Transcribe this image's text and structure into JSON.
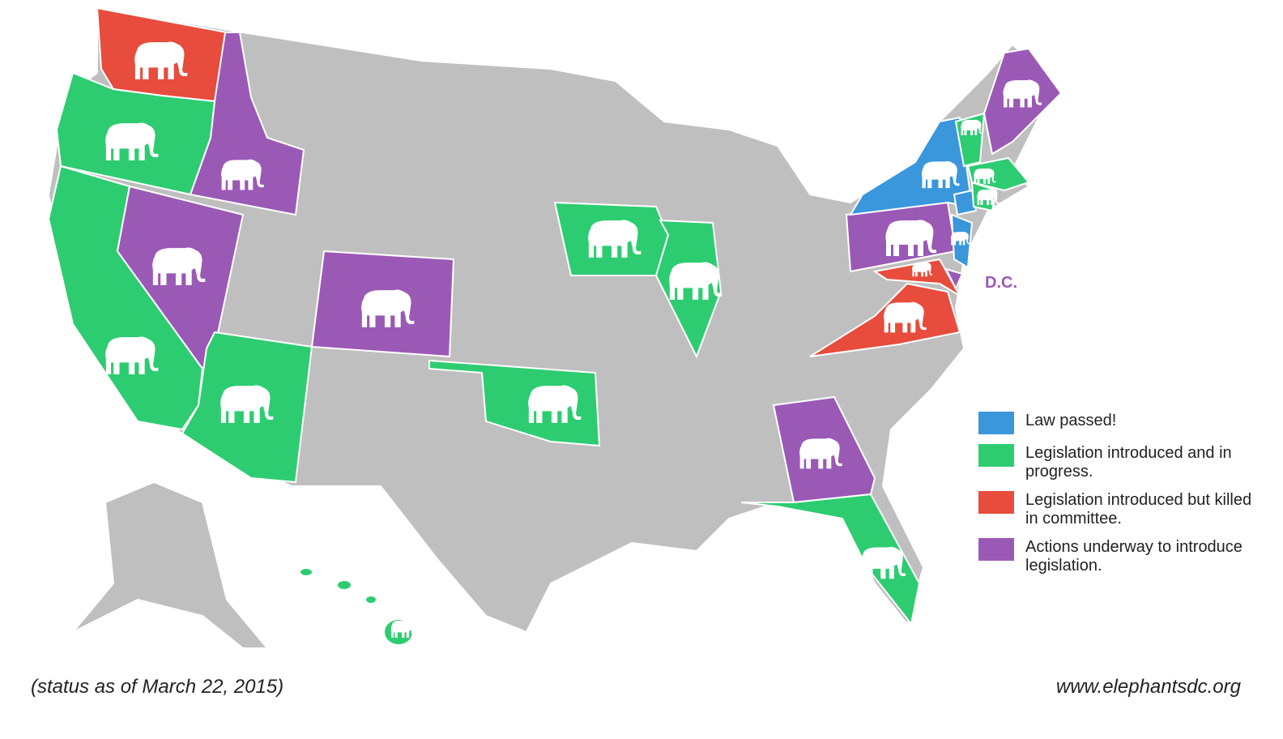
{
  "map": {
    "legend": [
      {
        "label": "Law passed!",
        "color": "#3a97dc"
      },
      {
        "label": "Legislation introduced and in progress.",
        "color": "#2ecc71"
      },
      {
        "label": "Legislation introduced but killed in committee.",
        "color": "#e74c3c"
      },
      {
        "label": "Actions underway to introduce legislation.",
        "color": "#9b59b6"
      }
    ],
    "dc_label": "D.C.",
    "footnote": "(status as of March 22, 2015)",
    "source": "www.elephantsdc.org"
  }
}
